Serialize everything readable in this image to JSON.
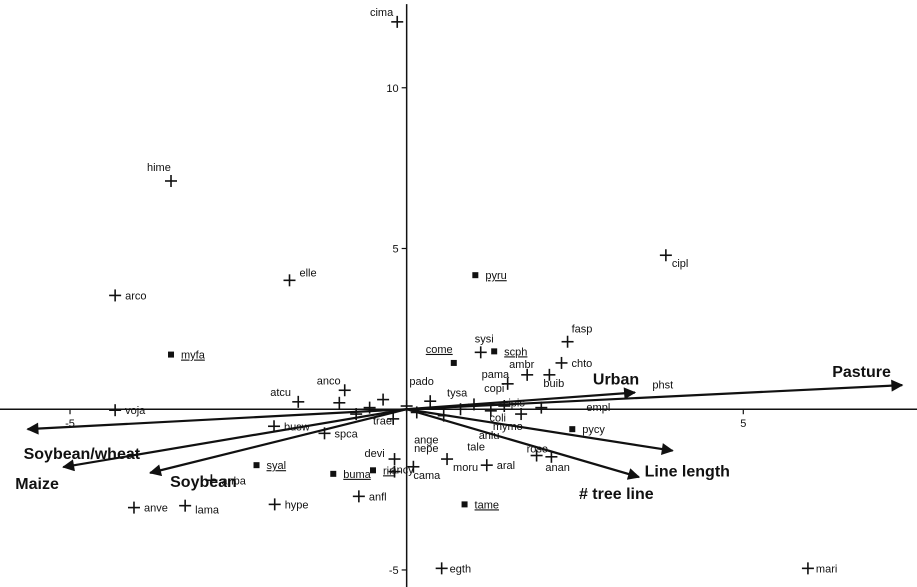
{
  "chart_data": {
    "type": "scatter",
    "title": "",
    "xlabel": "",
    "ylabel": "",
    "xlim": [
      -6.04,
      7.58
    ],
    "ylim": [
      -5.53,
      12.73
    ],
    "x_ticks": [
      -5,
      5
    ],
    "y_ticks": [
      10,
      5,
      -5
    ],
    "grid": false,
    "legend": "none",
    "species_cross": [
      {
        "label": "cima",
        "x": -0.14,
        "y": 12.05
      },
      {
        "label": "hime",
        "x": -3.5,
        "y": 7.1
      },
      {
        "label": "elle",
        "x": -1.74,
        "y": 4.01
      },
      {
        "label": "arco",
        "x": -4.33,
        "y": 3.54
      },
      {
        "label": "cipl",
        "x": 3.85,
        "y": 4.79
      },
      {
        "label": "sysi",
        "x": 1.1,
        "y": 1.77
      },
      {
        "label": "fasp",
        "x": 2.39,
        "y": 2.1
      },
      {
        "label": "chto",
        "x": 2.3,
        "y": 1.44
      },
      {
        "label": "ambr",
        "x": 1.79,
        "y": 1.07
      },
      {
        "label": "buib",
        "x": 2.12,
        "y": 1.07
      },
      {
        "label": "pama",
        "x": 1.5,
        "y": 0.79
      },
      {
        "label": "voja",
        "x": -4.33,
        "y": -0.03
      },
      {
        "label": "atcu",
        "x": -1.61,
        "y": 0.23
      },
      {
        "label": "anco",
        "x": -0.92,
        "y": 0.59
      },
      {
        "label": "busw",
        "x": -1.97,
        "y": -0.53
      },
      {
        "label": "spca",
        "x": -1.22,
        "y": -0.75
      },
      {
        "label": "devi",
        "x": -0.18,
        "y": -1.55
      },
      {
        "label": "ancy",
        "x": -0.18,
        "y": -1.94
      },
      {
        "label": "cama",
        "x": 0.1,
        "y": -1.79
      },
      {
        "label": "roso",
        "x": 1.93,
        "y": -1.44
      },
      {
        "label": "aral",
        "x": 1.19,
        "y": -1.74
      },
      {
        "label": "moru",
        "x": 0.6,
        "y": -1.55
      },
      {
        "label": "anan",
        "x": 2.15,
        "y": -1.48
      },
      {
        "label": "anba",
        "x": -2.9,
        "y": -2.21
      },
      {
        "label": "anve",
        "x": -4.05,
        "y": -3.06
      },
      {
        "label": "lama",
        "x": -3.29,
        "y": -3.0
      },
      {
        "label": "hype",
        "x": -1.96,
        "y": -2.96
      },
      {
        "label": "anfl",
        "x": -0.71,
        "y": -2.71
      },
      {
        "label": "egth",
        "x": 0.52,
        "y": -4.95
      },
      {
        "label": "mari",
        "x": 5.96,
        "y": -4.95
      }
    ],
    "species_square": [
      {
        "label": "pyru",
        "x": 1.02,
        "y": 4.17,
        "underline": true
      },
      {
        "label": "myfa",
        "x": -3.5,
        "y": 1.7,
        "underline": true
      },
      {
        "label": "come",
        "x": 0.7,
        "y": 1.44,
        "underline": true
      },
      {
        "label": "scph",
        "x": 1.3,
        "y": 1.8,
        "underline": true
      },
      {
        "label": "syal",
        "x": -2.23,
        "y": -1.74,
        "underline": true
      },
      {
        "label": "buma",
        "x": -1.09,
        "y": -2.01,
        "underline": true
      },
      {
        "label": "riri",
        "x": -0.5,
        "y": -1.9,
        "underline": true
      },
      {
        "label": "tame",
        "x": 0.86,
        "y": -2.96,
        "underline": true
      },
      {
        "label": "pycy",
        "x": 2.46,
        "y": -0.62,
        "underline": false
      }
    ],
    "central_labels": [
      {
        "label": "pado",
        "x": 0.04,
        "y": 0.75
      },
      {
        "label": "tysa",
        "x": 0.6,
        "y": 0.4
      },
      {
        "label": "copi",
        "x": 1.15,
        "y": 0.53
      },
      {
        "label": "phst",
        "x": 3.65,
        "y": 0.65
      },
      {
        "label": "empl",
        "x": 2.67,
        "y": -0.06
      },
      {
        "label": "coli",
        "x": 1.23,
        "y": -0.38
      },
      {
        "label": "ange",
        "x": 0.11,
        "y": -1.07
      },
      {
        "label": "nepe",
        "x": 0.11,
        "y": -1.33
      },
      {
        "label": "anlu",
        "x": 1.07,
        "y": -0.93
      },
      {
        "label": "mymo",
        "x": 1.28,
        "y": -0.65
      },
      {
        "label": "tale",
        "x": 0.9,
        "y": -1.28
      },
      {
        "label": "trae",
        "x": -0.5,
        "y": -0.47
      },
      {
        "label": "ipis",
        "x": 1.51,
        "y": 0.08
      }
    ],
    "vectors": [
      {
        "label": "Pasture",
        "x": 7.36,
        "y": 0.75
      },
      {
        "label": "Urban",
        "x": 3.39,
        "y": 0.52
      },
      {
        "label": "Line length",
        "x": 3.95,
        "y": -1.29
      },
      {
        "label": "# tree line",
        "x": 3.45,
        "y": -2.11
      },
      {
        "label": "Soybean/wheat",
        "x": -5.63,
        "y": -0.62
      },
      {
        "label": "Maize",
        "x": -5.1,
        "y": -1.8
      },
      {
        "label": "Soybean",
        "x": -3.81,
        "y": -1.98
      }
    ]
  }
}
